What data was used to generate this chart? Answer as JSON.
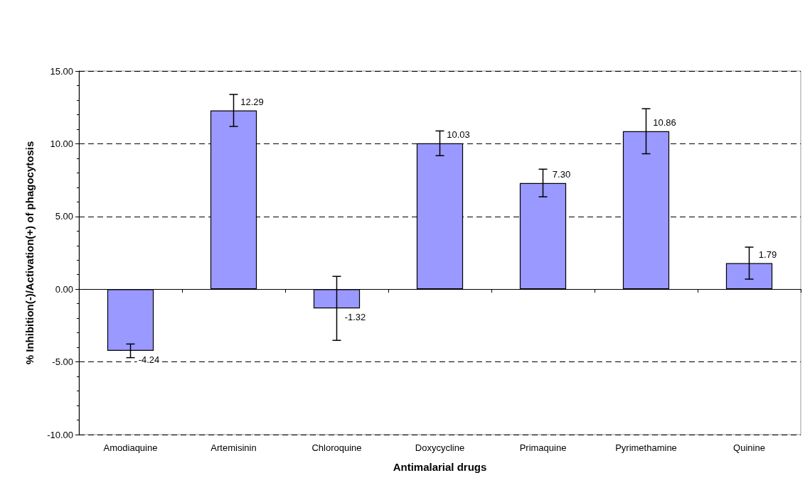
{
  "chart_data": {
    "type": "bar",
    "xlabel": "Antimalarial drugs",
    "ylabel": "% Inhibition(-)/Activation(+) of phagocytosis",
    "categories": [
      "Amodiaquine",
      "Artemisinin",
      "Chloroquine",
      "Doxycycline",
      "Primaquine",
      "Pyrimethamine",
      "Quinine"
    ],
    "values": [
      -4.24,
      12.29,
      -1.32,
      10.03,
      7.3,
      10.86,
      1.79
    ],
    "value_labels": [
      "-4.24",
      "12.29",
      "-1.32",
      "10.03",
      "7.30",
      "10.86",
      "1.79"
    ],
    "errors": [
      0.47,
      1.1,
      2.2,
      0.85,
      0.95,
      1.55,
      1.1
    ],
    "color": "#9999ff",
    "ylim": [
      -10,
      15
    ],
    "yticks": [
      {
        "value": -10,
        "label": "-10.00"
      },
      {
        "value": -5,
        "label": "-5.00"
      },
      {
        "value": 0,
        "label": "0.00"
      },
      {
        "value": 5,
        "label": "5.00"
      },
      {
        "value": 10,
        "label": "10.00"
      },
      {
        "value": 15,
        "label": "15.00"
      }
    ],
    "grid": "y"
  }
}
